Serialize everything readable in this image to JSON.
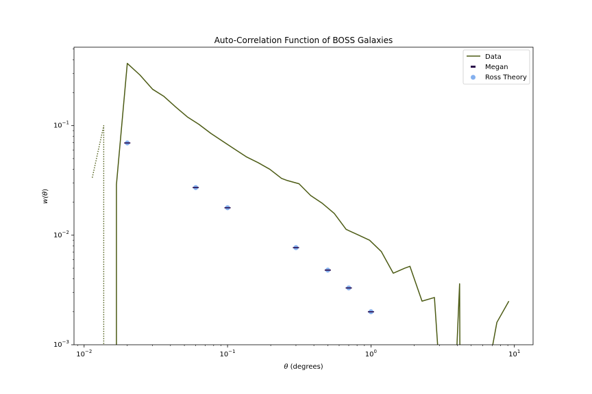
{
  "chart_data": {
    "type": "line",
    "title": "Auto-Correlation Function of BOSS Galaxies",
    "xlabel_prefix": "θ",
    "xlabel_suffix": " (degrees)",
    "ylabel_prefix": "w(",
    "ylabel_theta": "θ",
    "ylabel_suffix": ")",
    "xscale": "log",
    "yscale": "log",
    "xlim": [
      0.0085,
      13.5
    ],
    "ylim": [
      0.001,
      0.52
    ],
    "grid": false,
    "legend_position": "top-right",
    "x_ticks": [
      {
        "value": 0.01,
        "base": "10",
        "exp": "−2"
      },
      {
        "value": 0.1,
        "base": "10",
        "exp": "−1"
      },
      {
        "value": 1,
        "base": "10",
        "exp": "0"
      },
      {
        "value": 10,
        "base": "10",
        "exp": "1"
      }
    ],
    "y_ticks": [
      {
        "value": 0.001,
        "base": "10",
        "exp": "−3"
      },
      {
        "value": 0.01,
        "base": "10",
        "exp": "−2"
      },
      {
        "value": 0.1,
        "base": "10",
        "exp": "−1"
      }
    ],
    "series": [
      {
        "name": "Data",
        "color": "#4b5a13",
        "style": "solid",
        "points": [
          [
            0.0168,
            0.0008
          ],
          [
            0.0168,
            0.029
          ],
          [
            0.02,
            0.37
          ],
          [
            0.0245,
            0.29
          ],
          [
            0.03,
            0.215
          ],
          [
            0.036,
            0.185
          ],
          [
            0.0435,
            0.148
          ],
          [
            0.0525,
            0.12
          ],
          [
            0.063,
            0.103
          ],
          [
            0.0765,
            0.085
          ],
          [
            0.0925,
            0.072
          ],
          [
            0.112,
            0.061
          ],
          [
            0.135,
            0.052
          ],
          [
            0.163,
            0.046
          ],
          [
            0.197,
            0.04
          ],
          [
            0.238,
            0.033
          ],
          [
            0.262,
            0.0315
          ],
          [
            0.315,
            0.0295
          ],
          [
            0.38,
            0.023
          ],
          [
            0.459,
            0.0195
          ],
          [
            0.555,
            0.0158
          ],
          [
            0.671,
            0.0113
          ],
          [
            0.81,
            0.0101
          ],
          [
            0.978,
            0.009
          ],
          [
            1.18,
            0.0071
          ],
          [
            1.43,
            0.0045
          ],
          [
            1.72,
            0.005
          ],
          [
            1.87,
            0.0052
          ],
          [
            2.27,
            0.0025
          ],
          [
            2.77,
            0.0027
          ],
          [
            2.95,
            0.0008
          ]
        ]
      },
      {
        "name": "Data",
        "color": "#4b5a13",
        "style": "solid",
        "points": [
          [
            3.95,
            0.0008
          ],
          [
            4.15,
            0.0036
          ],
          [
            4.17,
            0.0008
          ]
        ]
      },
      {
        "name": "Data",
        "color": "#4b5a13",
        "style": "solid",
        "points": [
          [
            6.85,
            0.0008
          ],
          [
            7.55,
            0.0016
          ],
          [
            9.15,
            0.0025
          ]
        ]
      },
      {
        "name": "Data",
        "color": "#4b5a13",
        "style": "dotted",
        "points": [
          [
            0.0114,
            0.0335
          ],
          [
            0.0137,
            0.1
          ],
          [
            0.0137,
            0.0008
          ]
        ]
      }
    ],
    "megan": {
      "name": "Megan",
      "color": "#2a0a4a",
      "x": [
        0.02,
        0.06,
        0.1,
        0.3,
        0.5,
        0.7,
        1.0
      ],
      "y": [
        0.0695,
        0.0272,
        0.0178,
        0.0077,
        0.0048,
        0.0033,
        0.002
      ]
    },
    "ross": {
      "name": "Ross Theory",
      "color": "#1f6fe0",
      "x": [
        0.02,
        0.06,
        0.1,
        0.3,
        0.5,
        0.7,
        1.0
      ],
      "y": [
        0.0695,
        0.0272,
        0.0178,
        0.0077,
        0.0048,
        0.0033,
        0.002
      ]
    },
    "legend": [
      {
        "label": "Data",
        "kind": "line",
        "color": "#4b5a13"
      },
      {
        "label": "Megan",
        "kind": "errorbar",
        "color": "#2a0a4a"
      },
      {
        "label": "Ross Theory",
        "kind": "marker",
        "color": "#1f6fe0"
      }
    ]
  }
}
